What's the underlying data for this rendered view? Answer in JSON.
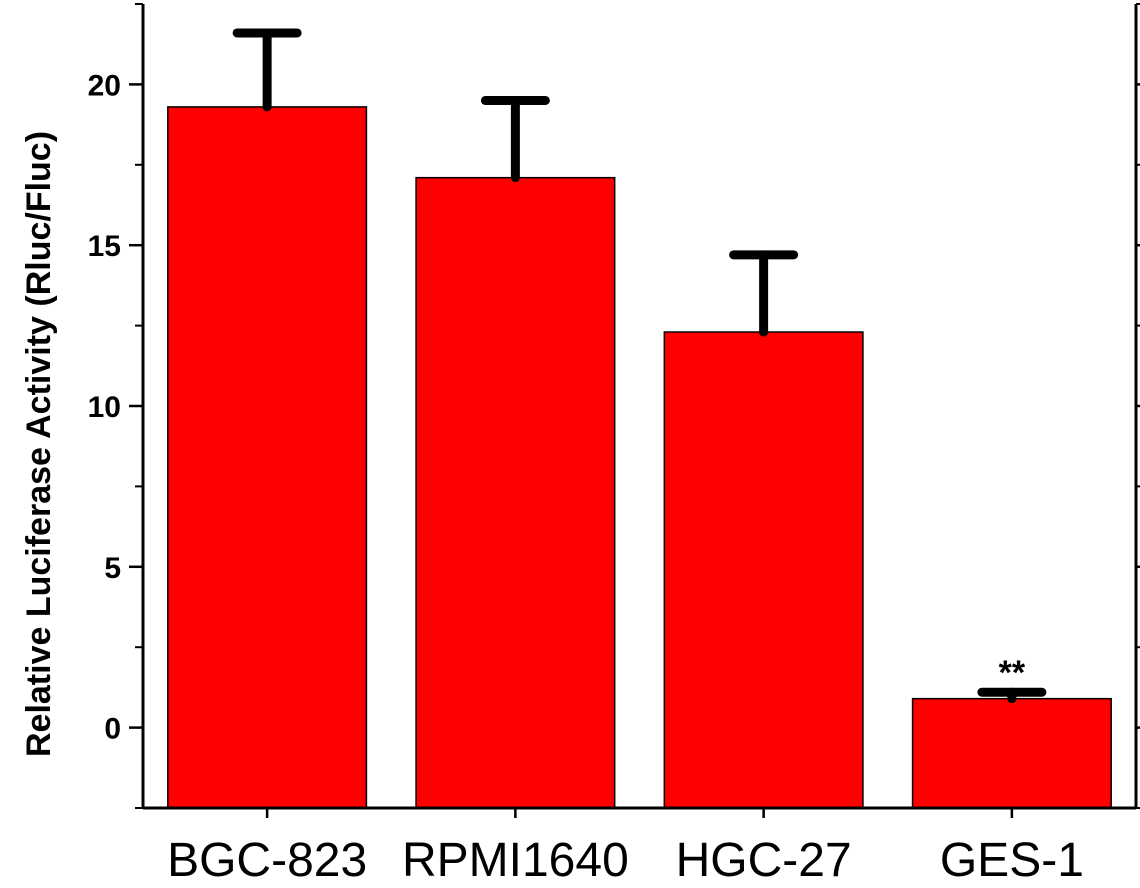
{
  "chart_data": {
    "type": "bar",
    "title": "",
    "xlabel": "",
    "ylabel": "Relative Luciferase Activity (Rluc/Fluc)",
    "categories": [
      "BGC-823",
      "RPMI1640",
      "HGC-27",
      "GES-1"
    ],
    "values": [
      19.3,
      17.1,
      12.3,
      0.9
    ],
    "error_upper": [
      21.6,
      19.5,
      14.7,
      1.1
    ],
    "annotations": [
      "",
      "",
      "",
      "**"
    ],
    "ylim": [
      -2.5,
      22.5
    ],
    "yticks": [
      0,
      5,
      10,
      15,
      20
    ],
    "ytick_labels": [
      "0",
      "5",
      "10",
      "15",
      "20"
    ],
    "bar_color": "#ff0000",
    "grid": false,
    "legend": "none"
  }
}
